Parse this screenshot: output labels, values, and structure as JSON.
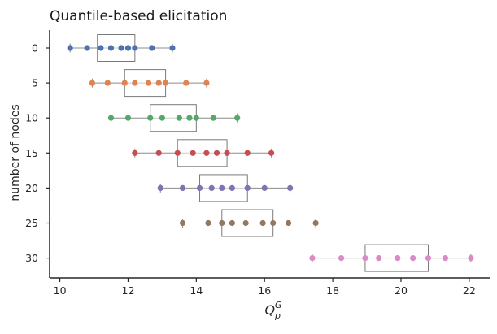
{
  "chart_data": {
    "type": "box-strip",
    "title": "Quantile-based elicitation",
    "xlabel": "Q_p^G",
    "ylabel": "number of nodes",
    "xlim": [
      9.7,
      22.6
    ],
    "xticks": [
      10,
      12,
      14,
      16,
      18,
      20,
      22
    ],
    "categories": [
      "0",
      "5",
      "10",
      "15",
      "20",
      "25",
      "30"
    ],
    "grid": false,
    "series": [
      {
        "category": "0",
        "color": "#4c72b0",
        "box": [
          11.1,
          12.2
        ],
        "whiskers": [
          10.3,
          13.3
        ],
        "points": [
          10.3,
          10.8,
          11.2,
          11.5,
          11.8,
          12.0,
          12.2,
          12.7,
          13.3
        ]
      },
      {
        "category": "5",
        "color": "#dd8452",
        "box": [
          11.9,
          13.1
        ],
        "whiskers": [
          10.95,
          14.3
        ],
        "points": [
          10.95,
          11.4,
          11.9,
          12.2,
          12.6,
          12.9,
          13.1,
          13.7,
          14.3
        ]
      },
      {
        "category": "10",
        "color": "#55a868",
        "box": [
          12.65,
          14.0
        ],
        "whiskers": [
          11.5,
          15.2
        ],
        "points": [
          11.5,
          12.0,
          12.65,
          13.0,
          13.5,
          13.8,
          14.0,
          14.5,
          15.2
        ]
      },
      {
        "category": "15",
        "color": "#c44e52",
        "box": [
          13.45,
          14.9
        ],
        "whiskers": [
          12.2,
          16.2
        ],
        "points": [
          12.2,
          12.9,
          13.45,
          13.9,
          14.3,
          14.6,
          14.9,
          15.5,
          16.2
        ]
      },
      {
        "category": "20",
        "color": "#8172b3",
        "box": [
          14.1,
          15.5
        ],
        "whiskers": [
          12.95,
          16.75
        ],
        "points": [
          12.95,
          13.6,
          14.1,
          14.45,
          14.75,
          15.05,
          15.5,
          16.0,
          16.75
        ]
      },
      {
        "category": "25",
        "color": "#937860",
        "box": [
          14.75,
          16.25
        ],
        "whiskers": [
          13.6,
          17.5
        ],
        "points": [
          13.6,
          14.35,
          14.75,
          15.05,
          15.45,
          15.95,
          16.25,
          16.7,
          17.5
        ]
      },
      {
        "category": "30",
        "color": "#da8bc3",
        "box": [
          18.95,
          20.8
        ],
        "whiskers": [
          17.4,
          22.05
        ],
        "points": [
          17.4,
          18.25,
          18.95,
          19.35,
          19.9,
          20.35,
          20.8,
          21.3,
          22.05
        ]
      }
    ]
  }
}
